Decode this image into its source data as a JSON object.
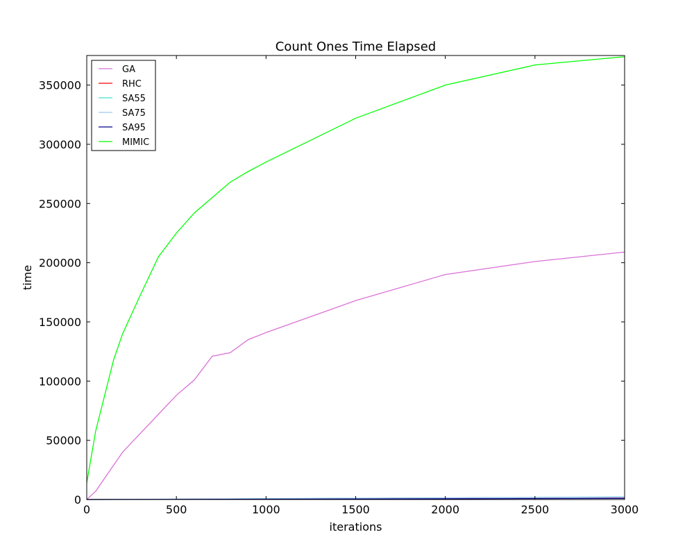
{
  "chart_data": {
    "type": "line",
    "title": "Count Ones Time Elapsed",
    "xlabel": "iterations",
    "ylabel": "time",
    "xlim": [
      0,
      3000
    ],
    "ylim": [
      0,
      375000
    ],
    "xticks": [
      0,
      500,
      1000,
      1500,
      2000,
      2500,
      3000
    ],
    "yticks": [
      0,
      50000,
      100000,
      150000,
      200000,
      250000,
      300000,
      350000
    ],
    "xtick_labels": [
      "0",
      "500",
      "1000",
      "1500",
      "2000",
      "2500",
      "3000"
    ],
    "ytick_labels": [
      "0",
      "50000",
      "100000",
      "150000",
      "200000",
      "250000",
      "300000",
      "350000"
    ],
    "grid": false,
    "legend_position": "top-left",
    "series": [
      {
        "name": "GA",
        "color": "#da70d6",
        "x": [
          0,
          50,
          100,
          150,
          200,
          300,
          400,
          500,
          600,
          700,
          800,
          900,
          1000,
          1500,
          2000,
          2500,
          3000
        ],
        "y": [
          0,
          7000,
          18000,
          29000,
          40000,
          56000,
          72000,
          88000,
          101000,
          121000,
          124000,
          135000,
          141000,
          168000,
          190000,
          201000,
          209000
        ]
      },
      {
        "name": "RHC",
        "color": "#ff0000",
        "x": [
          0,
          500,
          1000,
          1500,
          2000,
          2500,
          3000
        ],
        "y": [
          0,
          200,
          600,
          1000,
          1300,
          1700,
          2000
        ]
      },
      {
        "name": "SA55",
        "color": "#40e0d0",
        "x": [
          0,
          500,
          1000,
          1500,
          2000,
          2500,
          3000
        ],
        "y": [
          0,
          300,
          700,
          1100,
          1400,
          1800,
          2200
        ]
      },
      {
        "name": "SA75",
        "color": "#a4c8f0",
        "x": [
          0,
          500,
          1000,
          1500,
          2000,
          2500,
          3000
        ],
        "y": [
          0,
          250,
          650,
          1000,
          1350,
          1700,
          2100
        ]
      },
      {
        "name": "SA95",
        "color": "#00008b",
        "x": [
          0,
          500,
          1000,
          1500,
          2000,
          2500,
          3000
        ],
        "y": [
          0,
          100,
          300,
          450,
          600,
          800,
          1000
        ]
      },
      {
        "name": "MIMIC",
        "color": "#00ff00",
        "x": [
          0,
          50,
          100,
          150,
          200,
          300,
          400,
          500,
          600,
          700,
          800,
          900,
          1000,
          1500,
          2000,
          2500,
          3000
        ],
        "y": [
          14000,
          58000,
          88000,
          118000,
          140000,
          173000,
          205000,
          225000,
          242000,
          255000,
          268000,
          277000,
          285000,
          322000,
          350000,
          367000,
          374000
        ]
      }
    ]
  }
}
